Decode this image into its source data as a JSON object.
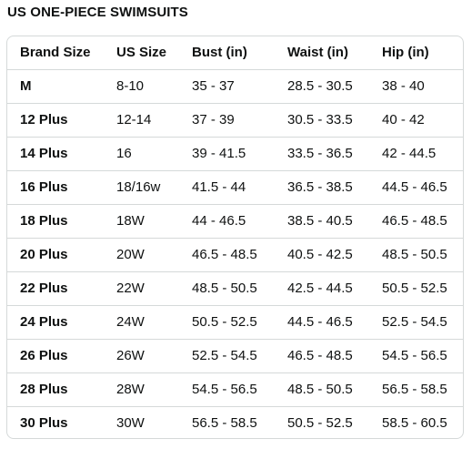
{
  "title": "US ONE-PIECE SWIMSUITS",
  "table": {
    "headers": [
      "Brand Size",
      "US Size",
      "Bust (in)",
      "Waist (in)",
      "Hip (in)"
    ],
    "rows": [
      [
        "M",
        "8-10",
        "35 - 37",
        "28.5 - 30.5",
        "38 - 40"
      ],
      [
        "12 Plus",
        "12-14",
        "37 - 39",
        "30.5 - 33.5",
        "40 - 42"
      ],
      [
        "14 Plus",
        "16",
        "39 - 41.5",
        "33.5 - 36.5",
        "42 - 44.5"
      ],
      [
        "16 Plus",
        "18/16w",
        "41.5 - 44",
        "36.5 - 38.5",
        "44.5 - 46.5"
      ],
      [
        "18 Plus",
        "18W",
        "44 - 46.5",
        "38.5 - 40.5",
        "46.5 - 48.5"
      ],
      [
        "20 Plus",
        "20W",
        "46.5 - 48.5",
        "40.5 - 42.5",
        "48.5 - 50.5"
      ],
      [
        "22 Plus",
        "22W",
        "48.5 - 50.5",
        "42.5 - 44.5",
        "50.5 - 52.5"
      ],
      [
        "24 Plus",
        "24W",
        "50.5 - 52.5",
        "44.5 - 46.5",
        "52.5 - 54.5"
      ],
      [
        "26 Plus",
        "26W",
        "52.5 - 54.5",
        "46.5 - 48.5",
        "54.5 - 56.5"
      ],
      [
        "28 Plus",
        "28W",
        "54.5 - 56.5",
        "48.5 - 50.5",
        "56.5 - 58.5"
      ],
      [
        "30 Plus",
        "30W",
        "56.5 - 58.5",
        "50.5 - 52.5",
        "58.5 - 60.5"
      ]
    ]
  }
}
